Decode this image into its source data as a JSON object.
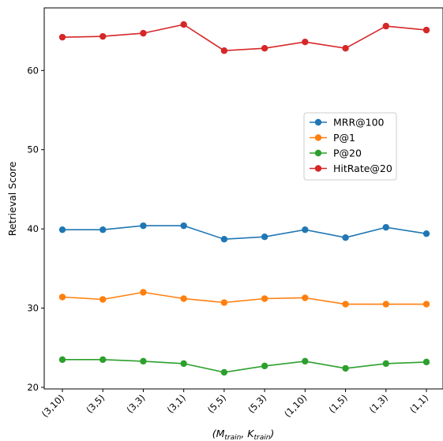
{
  "chart_data": {
    "type": "line",
    "categories": [
      "(3,10)",
      "(3,5)",
      "(3,3)",
      "(3,1)",
      "(5,5)",
      "(5,3)",
      "(1,10)",
      "(1,5)",
      "(1,3)",
      "(1,1)"
    ],
    "series": [
      {
        "name": "MRR@100",
        "color": "#1f77b4",
        "values": [
          39.9,
          39.9,
          40.4,
          40.4,
          38.7,
          39.0,
          39.9,
          38.9,
          40.2,
          39.4
        ]
      },
      {
        "name": "P@1",
        "color": "#ff7f0e",
        "values": [
          31.4,
          31.1,
          32.0,
          31.2,
          30.7,
          31.2,
          31.3,
          30.5,
          30.5,
          30.5
        ]
      },
      {
        "name": "P@20",
        "color": "#2ca02c",
        "values": [
          23.5,
          23.5,
          23.3,
          23.0,
          21.9,
          22.7,
          23.3,
          22.4,
          23.0,
          23.2
        ]
      },
      {
        "name": "HitRate@20",
        "color": "#d62728",
        "values": [
          64.2,
          64.3,
          64.7,
          65.8,
          62.5,
          62.8,
          63.6,
          62.8,
          65.6,
          65.1
        ]
      }
    ],
    "xlabel_main": "(M",
    "xlabel_sub1": "train",
    "xlabel_mid": ", K",
    "xlabel_sub2": "train",
    "xlabel_end": ")",
    "ylabel": "Retrieval Score",
    "yticks": [
      20,
      30,
      40,
      50,
      60
    ],
    "ylim": [
      19.8,
      67.9
    ],
    "grid": false,
    "legend_position": "center-right"
  }
}
